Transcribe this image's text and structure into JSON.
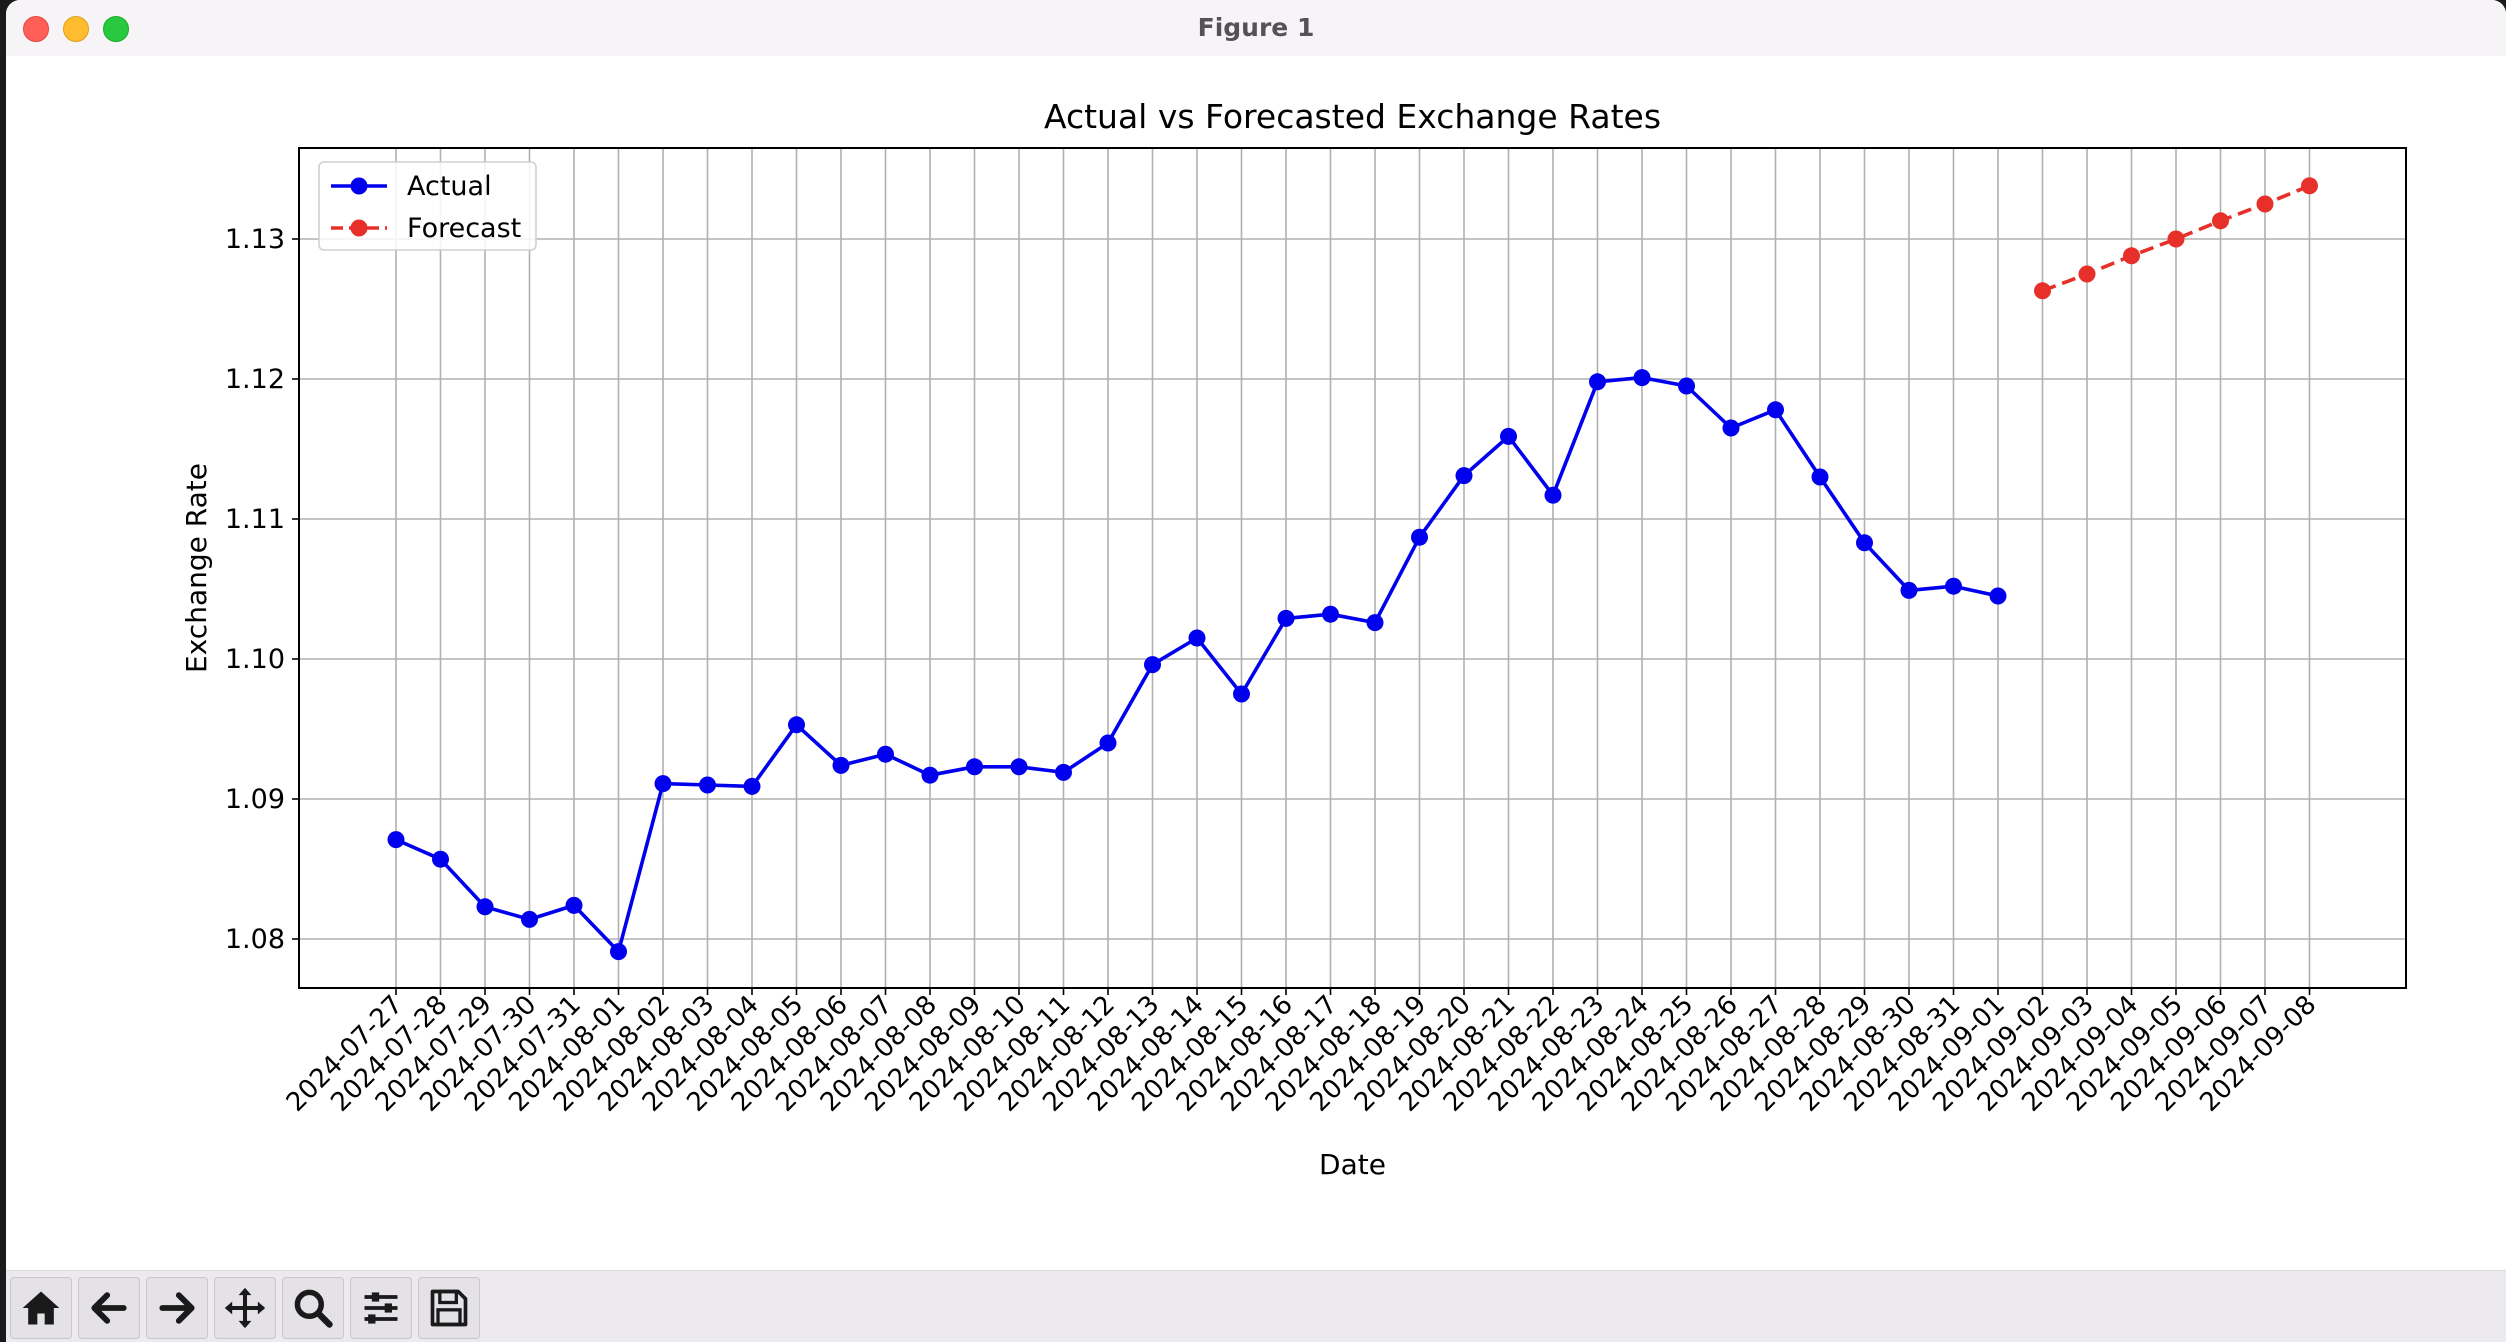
{
  "window": {
    "title": "Figure 1"
  },
  "toolbar": {
    "buttons": [
      {
        "icon": "home-icon",
        "name": "home-button"
      },
      {
        "icon": "back-arrow-icon",
        "name": "back-button"
      },
      {
        "icon": "forward-arrow-icon",
        "name": "forward-button"
      },
      {
        "icon": "pan-icon",
        "name": "pan-button"
      },
      {
        "icon": "zoom-icon",
        "name": "zoom-button"
      },
      {
        "icon": "configure-subplots-icon",
        "name": "configure-subplots-button"
      },
      {
        "icon": "save-icon",
        "name": "save-button"
      }
    ]
  },
  "chart_data": {
    "type": "line",
    "title": "Actual vs Forecasted Exchange Rates",
    "xlabel": "Date",
    "ylabel": "Exchange Rate",
    "ylim": [
      1.0765,
      1.1365
    ],
    "yticks": [
      1.08,
      1.09,
      1.1,
      1.11,
      1.12,
      1.13
    ],
    "ytick_labels": [
      "1.08",
      "1.09",
      "1.10",
      "1.11",
      "1.12",
      "1.13"
    ],
    "grid": true,
    "legend_position": "top-left",
    "categories": [
      "2024-07-27",
      "2024-07-28",
      "2024-07-29",
      "2024-07-30",
      "2024-07-31",
      "2024-08-01",
      "2024-08-02",
      "2024-08-03",
      "2024-08-04",
      "2024-08-05",
      "2024-08-06",
      "2024-08-07",
      "2024-08-08",
      "2024-08-09",
      "2024-08-10",
      "2024-08-11",
      "2024-08-12",
      "2024-08-13",
      "2024-08-14",
      "2024-08-15",
      "2024-08-16",
      "2024-08-17",
      "2024-08-18",
      "2024-08-19",
      "2024-08-20",
      "2024-08-21",
      "2024-08-22",
      "2024-08-23",
      "2024-08-24",
      "2024-08-25",
      "2024-08-26",
      "2024-08-27",
      "2024-08-28",
      "2024-08-29",
      "2024-08-30",
      "2024-08-31",
      "2024-09-01",
      "2024-09-02",
      "2024-09-03",
      "2024-09-04",
      "2024-09-05",
      "2024-09-06",
      "2024-09-07",
      "2024-09-08"
    ],
    "series": [
      {
        "name": "Actual",
        "color": "#0000ee",
        "style": "solid",
        "x": [
          "2024-07-27",
          "2024-07-28",
          "2024-07-29",
          "2024-07-30",
          "2024-07-31",
          "2024-08-01",
          "2024-08-02",
          "2024-08-03",
          "2024-08-04",
          "2024-08-05",
          "2024-08-06",
          "2024-08-07",
          "2024-08-08",
          "2024-08-09",
          "2024-08-10",
          "2024-08-11",
          "2024-08-12",
          "2024-08-13",
          "2024-08-14",
          "2024-08-15",
          "2024-08-16",
          "2024-08-17",
          "2024-08-18",
          "2024-08-19",
          "2024-08-20",
          "2024-08-21",
          "2024-08-22",
          "2024-08-23",
          "2024-08-24",
          "2024-08-25",
          "2024-08-26",
          "2024-08-27",
          "2024-08-28",
          "2024-08-29",
          "2024-08-30",
          "2024-08-31",
          "2024-09-01"
        ],
        "values": [
          1.0871,
          1.0857,
          1.0823,
          1.0814,
          1.0824,
          1.0791,
          1.0911,
          1.091,
          1.0909,
          1.0953,
          1.0924,
          1.0932,
          1.0917,
          1.0923,
          1.0923,
          1.0919,
          1.094,
          1.0996,
          1.1015,
          1.0975,
          1.1029,
          1.1032,
          1.1026,
          1.1087,
          1.1131,
          1.1159,
          1.1117,
          1.1198,
          1.1201,
          1.1195,
          1.1165,
          1.1178,
          1.113,
          1.1083,
          1.1049,
          1.1052,
          1.1045
        ]
      },
      {
        "name": "Forecast",
        "color": "#e8302a",
        "style": "dashed",
        "x": [
          "2024-09-02",
          "2024-09-03",
          "2024-09-04",
          "2024-09-05",
          "2024-09-06",
          "2024-09-07",
          "2024-09-08"
        ],
        "values": [
          1.1263,
          1.1275,
          1.1288,
          1.13,
          1.1313,
          1.1325,
          1.1338
        ]
      }
    ]
  }
}
